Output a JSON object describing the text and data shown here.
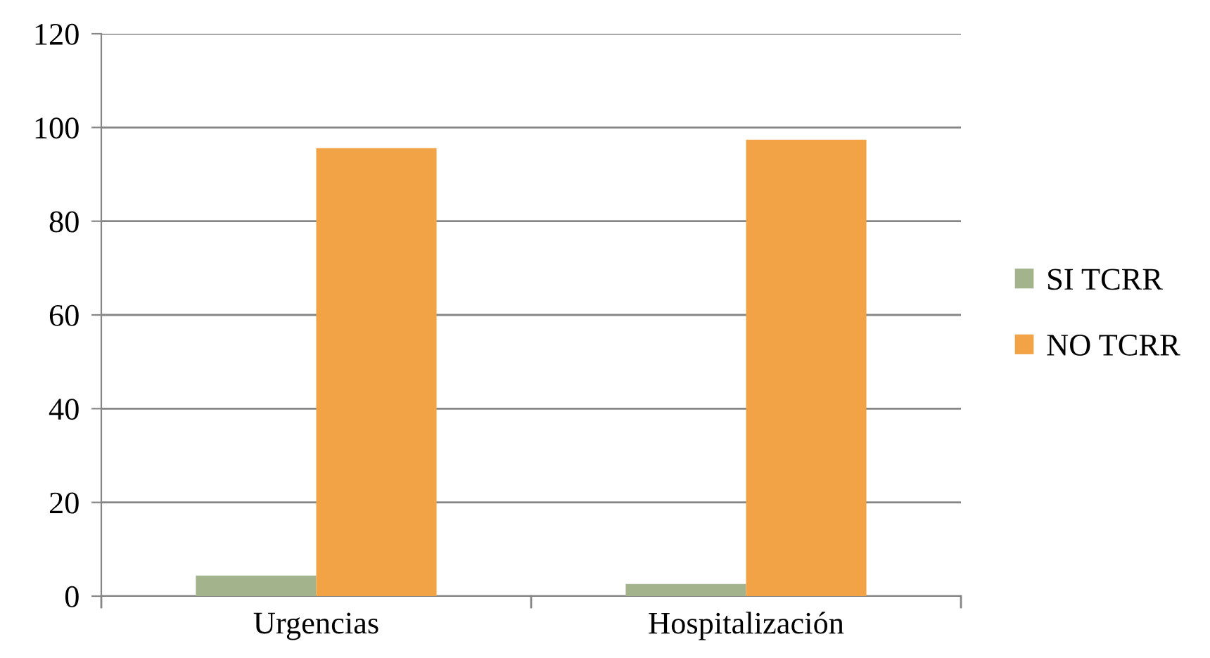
{
  "chart_data": {
    "type": "bar",
    "categories": [
      "Urgencias",
      "Hospitalización"
    ],
    "series": [
      {
        "name": "SI TCRR",
        "color": "#a3b48c",
        "values": [
          4.4,
          2.6
        ]
      },
      {
        "name": "NO TCRR",
        "color": "#f1a346",
        "values": [
          95.6,
          97.4
        ]
      }
    ],
    "ylim": [
      0,
      120
    ],
    "yticks": [
      0,
      20,
      40,
      60,
      80,
      100,
      120
    ],
    "grid": "y",
    "legend": "right"
  }
}
